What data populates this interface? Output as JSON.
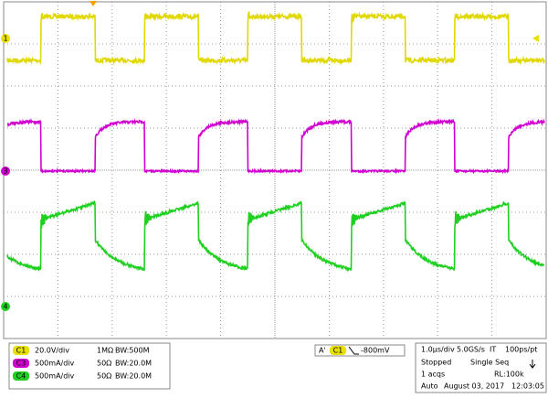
{
  "markers": [
    "1",
    "3",
    "4"
  ],
  "channels": [
    {
      "badge": "C1",
      "scale": "20.0V/div",
      "impedance": "1MΩ",
      "bandwidth": "BW:500M"
    },
    {
      "badge": "C3",
      "scale": "500mA/div",
      "impedance": "50Ω",
      "bandwidth": "BW:20.0M"
    },
    {
      "badge": "C4",
      "scale": "500mA/div",
      "impedance": "50Ω",
      "bandwidth": "BW:20.0M"
    }
  ],
  "trigger": {
    "mode": "A'",
    "source": "C1",
    "level": "-800mV"
  },
  "acquisition": {
    "rows": [
      [
        "1.0μs/div",
        "5.0GS/s",
        "IT",
        "100ps/pt"
      ],
      [
        "Stopped",
        "Single Seq"
      ],
      [
        "1 acqs",
        "RL:100k"
      ],
      [
        "Auto",
        "August 03, 2017",
        "12:03:05"
      ]
    ]
  }
}
